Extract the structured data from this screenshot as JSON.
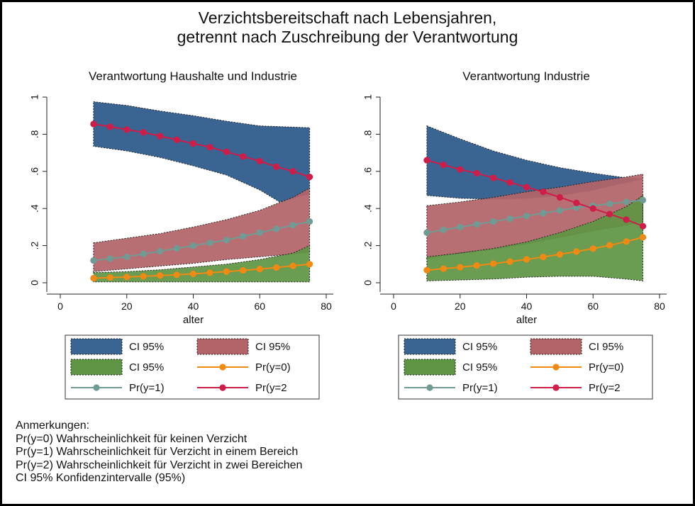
{
  "title_line1": "Verzichtsbereitschaft nach Lebensjahren,",
  "title_line2": "getrennt nach Zuschreibung der Verantwortung",
  "notes": [
    "Anmerkungen:",
    "Pr(y=0) Wahrscheinlichkeit für keinen Verzicht",
    "Pr(y=1) Wahrscheinlichkeit für Verzicht in einem Bereich",
    "Pr(y=2) Wahrscheinlichkeit für Verzicht in zwei Bereichen",
    "CI 95% Konfidenzintervalle (95%)"
  ],
  "colors": {
    "ci_y2": "#3a6593",
    "ci_y1": "#b36468",
    "ci_y0": "#5f9444",
    "line_y0": "#f08a12",
    "line_y1": "#6f9b94",
    "line_y2": "#d01c48"
  },
  "chart_data": [
    {
      "type": "line",
      "title": "Verantwortung Haushalte und Industrie",
      "xlabel": "alter",
      "xlim": [
        0,
        80
      ],
      "ylim": [
        0,
        1
      ],
      "xticks": [
        "0",
        "20",
        "40",
        "60",
        "80"
      ],
      "yticks": [
        "0",
        ".2",
        ".4",
        ".6",
        ".8",
        "1"
      ],
      "x": [
        10,
        15,
        20,
        25,
        30,
        35,
        40,
        45,
        50,
        55,
        60,
        65,
        70,
        75
      ],
      "series": [
        {
          "name": "Pr(y=0)",
          "values": [
            0.025,
            0.028,
            0.031,
            0.035,
            0.039,
            0.043,
            0.048,
            0.054,
            0.06,
            0.067,
            0.074,
            0.082,
            0.091,
            0.1
          ]
        },
        {
          "name": "Pr(y=1)",
          "values": [
            0.12,
            0.13,
            0.14,
            0.155,
            0.17,
            0.185,
            0.2,
            0.215,
            0.23,
            0.25,
            0.27,
            0.29,
            0.31,
            0.33
          ]
        },
        {
          "name": "Pr(y=2)",
          "values": [
            0.855,
            0.84,
            0.825,
            0.81,
            0.79,
            0.77,
            0.75,
            0.73,
            0.705,
            0.68,
            0.655,
            0.625,
            0.6,
            0.57
          ]
        }
      ],
      "ci": [
        {
          "name": "CI 95%",
          "series": "Pr(y=2)",
          "lower": [
            [
              10,
              0.735
            ],
            [
              20,
              0.71
            ],
            [
              30,
              0.675
            ],
            [
              40,
              0.63
            ],
            [
              50,
              0.58
            ],
            [
              60,
              0.5
            ],
            [
              66,
              0.435
            ],
            [
              75,
              0.48
            ]
          ],
          "upper": [
            [
              10,
              0.975
            ],
            [
              20,
              0.955
            ],
            [
              30,
              0.925
            ],
            [
              40,
              0.9
            ],
            [
              50,
              0.87
            ],
            [
              60,
              0.845
            ],
            [
              75,
              0.835
            ]
          ]
        },
        {
          "name": "CI 95%",
          "series": "Pr(y=1)",
          "lower": [
            [
              10,
              0.06
            ],
            [
              20,
              0.075
            ],
            [
              30,
              0.09
            ],
            [
              40,
              0.105
            ],
            [
              50,
              0.125
            ],
            [
              60,
              0.14
            ],
            [
              70,
              0.155
            ],
            [
              75,
              0.165
            ]
          ],
          "upper": [
            [
              10,
              0.215
            ],
            [
              20,
              0.24
            ],
            [
              30,
              0.265
            ],
            [
              40,
              0.3
            ],
            [
              50,
              0.34
            ],
            [
              60,
              0.39
            ],
            [
              70,
              0.46
            ],
            [
              75,
              0.51
            ]
          ]
        },
        {
          "name": "CI 95%",
          "series": "Pr(y=0)",
          "lower": [
            [
              10,
              0.005
            ],
            [
              30,
              0.005
            ],
            [
              50,
              0.005
            ],
            [
              75,
              0.005
            ]
          ],
          "upper": [
            [
              10,
              0.055
            ],
            [
              20,
              0.06
            ],
            [
              30,
              0.07
            ],
            [
              40,
              0.085
            ],
            [
              50,
              0.1
            ],
            [
              60,
              0.125
            ],
            [
              70,
              0.16
            ],
            [
              75,
              0.2
            ]
          ]
        }
      ],
      "legend": [
        "CI 95%",
        "CI 95%",
        "CI 95%",
        "Pr(y=0)",
        "Pr(y=1)",
        "Pr(y=2"
      ]
    },
    {
      "type": "line",
      "title": "Verantwortung Industrie",
      "xlabel": "alter",
      "xlim": [
        0,
        80
      ],
      "ylim": [
        0,
        1
      ],
      "xticks": [
        "0",
        "20",
        "40",
        "60",
        "80"
      ],
      "yticks": [
        "0",
        ".2",
        ".4",
        ".6",
        ".8",
        "1"
      ],
      "x": [
        10,
        15,
        20,
        25,
        30,
        35,
        40,
        45,
        50,
        55,
        60,
        65,
        70,
        75
      ],
      "series": [
        {
          "name": "Pr(y=0)",
          "values": [
            0.068,
            0.076,
            0.084,
            0.093,
            0.103,
            0.114,
            0.126,
            0.139,
            0.153,
            0.168,
            0.184,
            0.202,
            0.222,
            0.245
          ]
        },
        {
          "name": "Pr(y=1)",
          "values": [
            0.27,
            0.285,
            0.3,
            0.315,
            0.33,
            0.345,
            0.36,
            0.375,
            0.39,
            0.405,
            0.415,
            0.425,
            0.435,
            0.445
          ]
        },
        {
          "name": "Pr(y=2)",
          "values": [
            0.66,
            0.635,
            0.61,
            0.59,
            0.565,
            0.54,
            0.515,
            0.49,
            0.46,
            0.43,
            0.4,
            0.37,
            0.34,
            0.305
          ]
        }
      ],
      "ci": [
        {
          "name": "CI 95%",
          "series": "Pr(y=2)",
          "lower": [
            [
              10,
              0.47
            ],
            [
              20,
              0.455
            ],
            [
              30,
              0.45
            ],
            [
              40,
              0.455
            ],
            [
              50,
              0.47
            ],
            [
              60,
              0.5
            ],
            [
              70,
              0.54
            ],
            [
              75,
              0.56
            ]
          ],
          "upper": [
            [
              10,
              0.845
            ],
            [
              20,
              0.775
            ],
            [
              30,
              0.71
            ],
            [
              40,
              0.66
            ],
            [
              50,
              0.62
            ],
            [
              60,
              0.59
            ],
            [
              70,
              0.565
            ],
            [
              75,
              0.56
            ]
          ]
        },
        {
          "name": "CI 95%",
          "series": "Pr(y=1)",
          "lower": [
            [
              10,
              0.13
            ],
            [
              20,
              0.16
            ],
            [
              30,
              0.18
            ],
            [
              40,
              0.21
            ],
            [
              50,
              0.245
            ],
            [
              60,
              0.28
            ],
            [
              70,
              0.31
            ],
            [
              75,
              0.33
            ]
          ],
          "upper": [
            [
              10,
              0.415
            ],
            [
              20,
              0.435
            ],
            [
              30,
              0.46
            ],
            [
              40,
              0.49
            ],
            [
              50,
              0.515
            ],
            [
              60,
              0.545
            ],
            [
              70,
              0.57
            ],
            [
              75,
              0.585
            ]
          ]
        },
        {
          "name": "CI 95%",
          "series": "Pr(y=0)",
          "lower": [
            [
              10,
              0.01
            ],
            [
              20,
              0.015
            ],
            [
              30,
              0.02
            ],
            [
              40,
              0.03
            ],
            [
              50,
              0.035
            ],
            [
              60,
              0.035
            ],
            [
              70,
              0.02
            ],
            [
              75,
              0.01
            ]
          ],
          "upper": [
            [
              10,
              0.14
            ],
            [
              20,
              0.16
            ],
            [
              30,
              0.185
            ],
            [
              40,
              0.22
            ],
            [
              50,
              0.27
            ],
            [
              60,
              0.33
            ],
            [
              70,
              0.41
            ],
            [
              75,
              0.47
            ]
          ]
        }
      ],
      "legend": [
        "CI 95%",
        "CI 95%",
        "CI 95%",
        "Pr(y=0)",
        "Pr(y=1)",
        "Pr(y=2"
      ]
    }
  ]
}
